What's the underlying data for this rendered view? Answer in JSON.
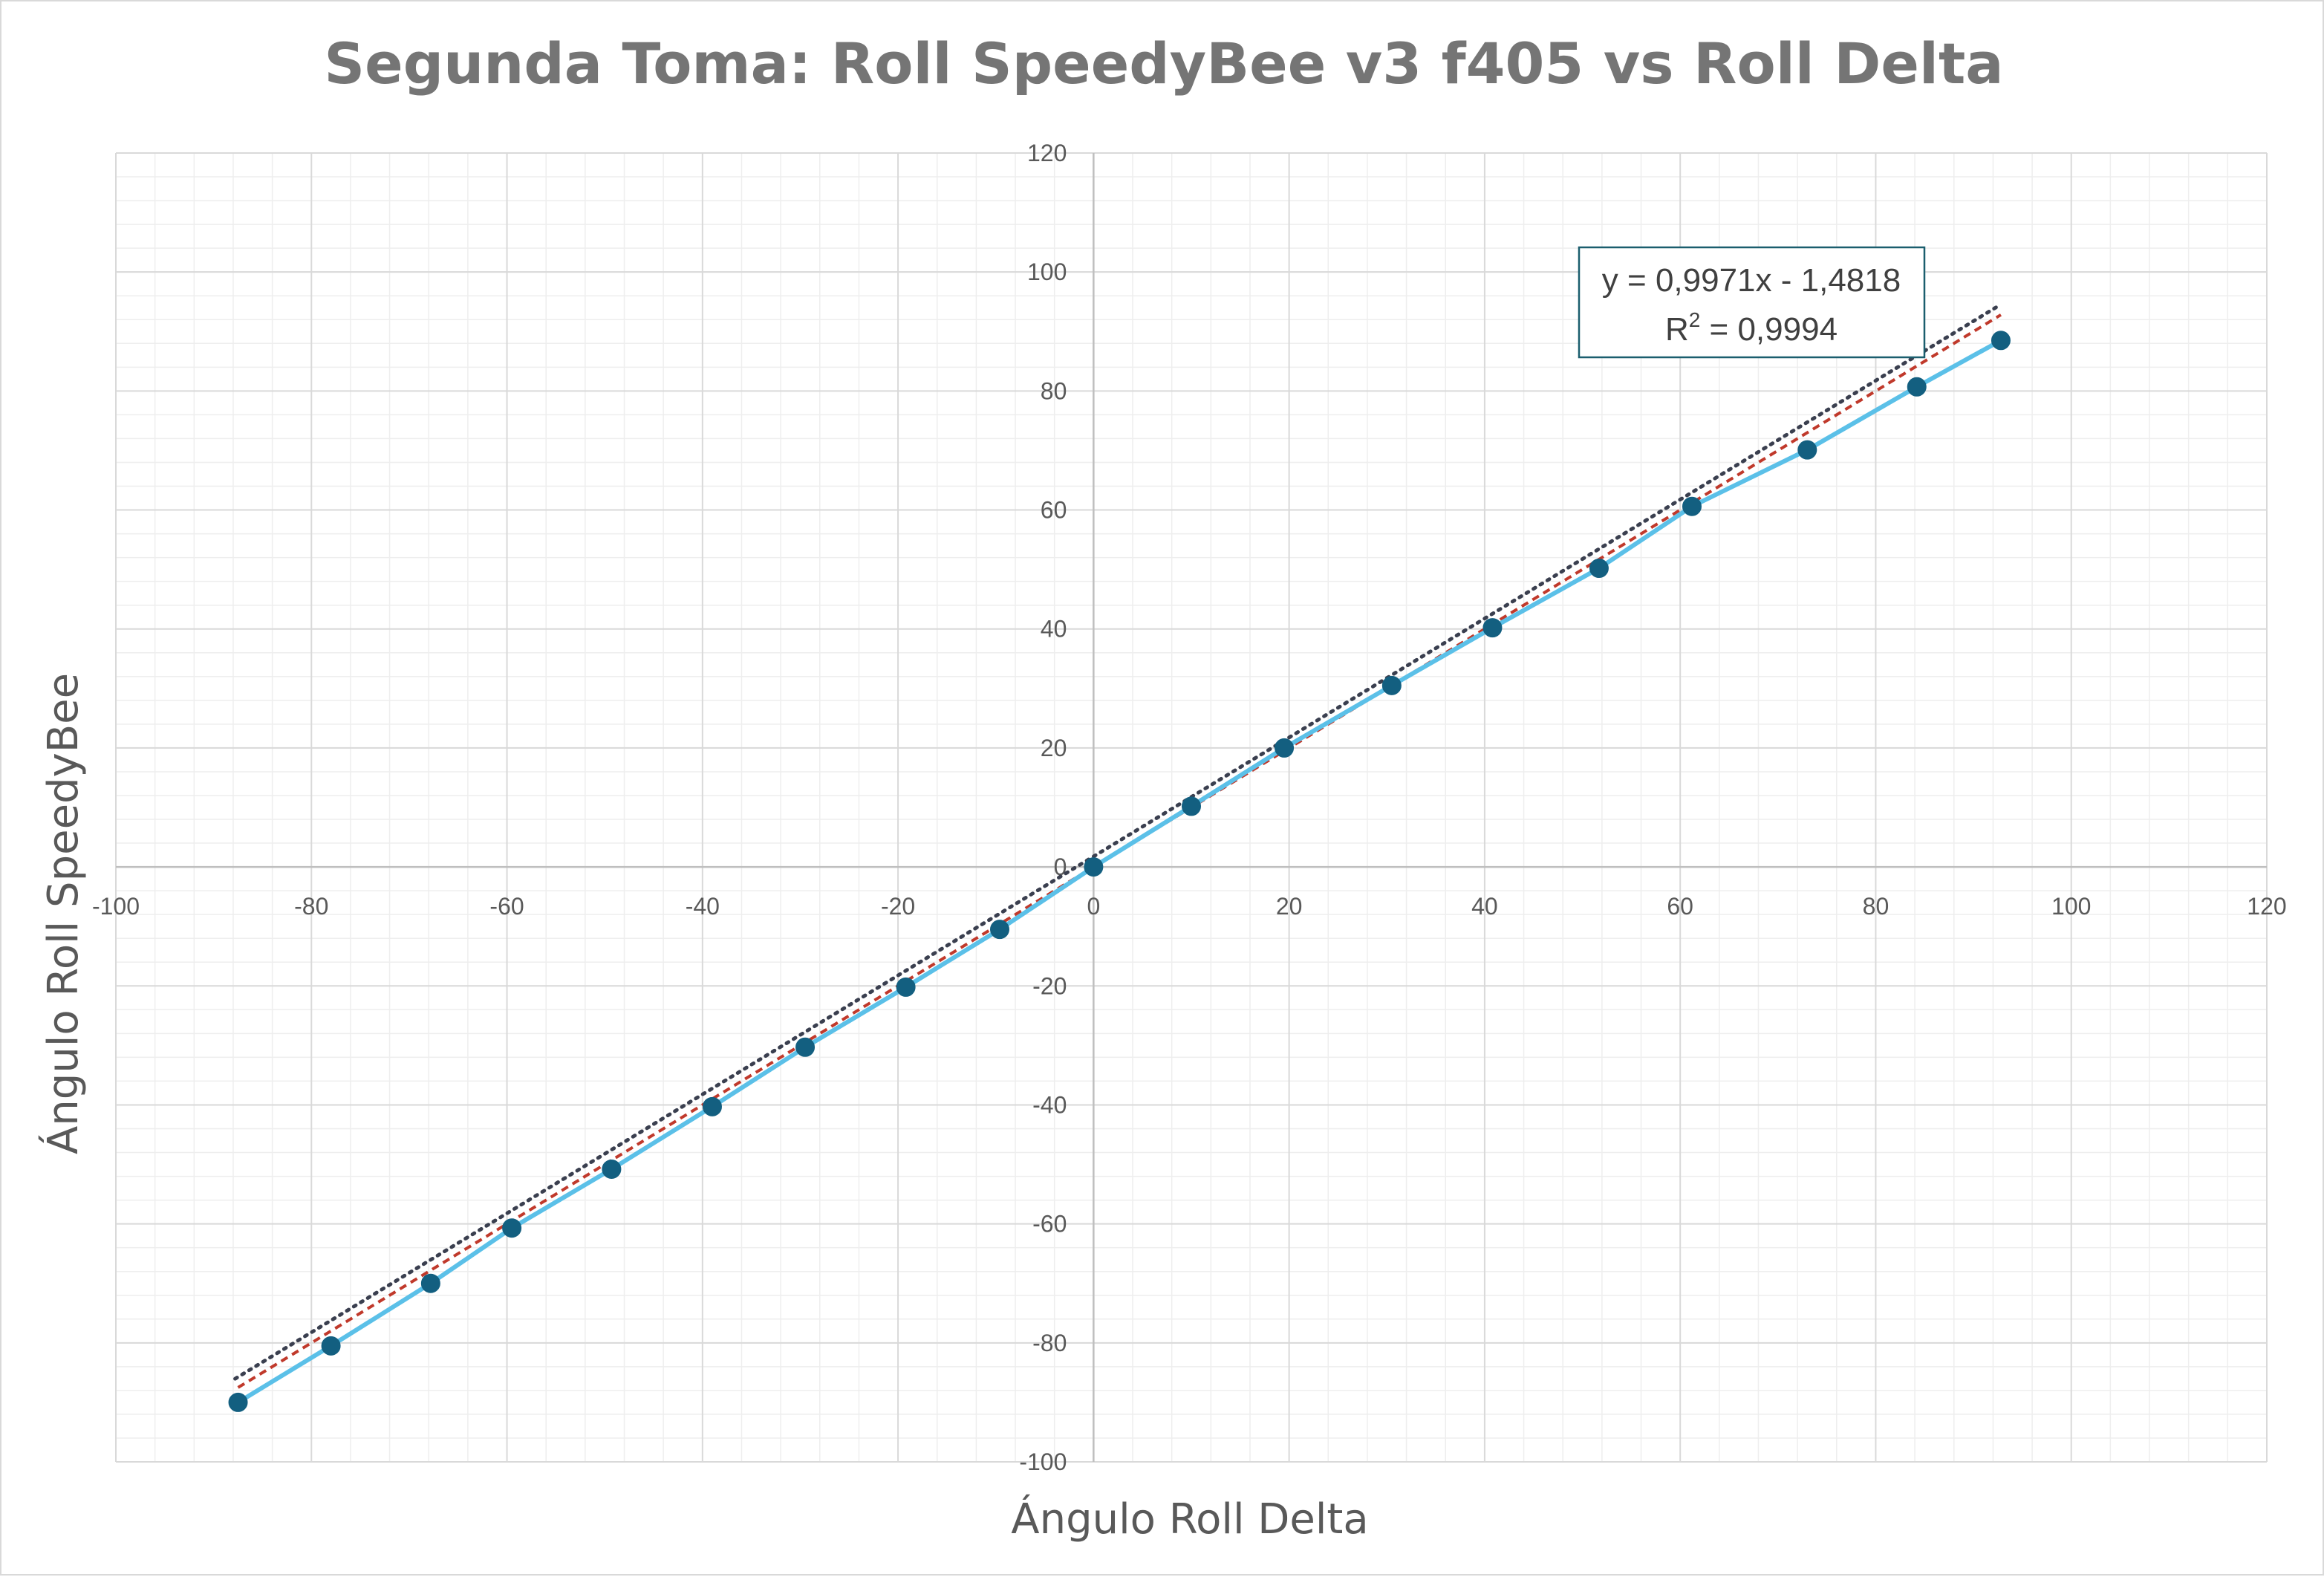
{
  "chart_data": {
    "type": "scatter",
    "title": "Segunda Toma: Roll SpeedyBee v3 f405 vs Roll Delta",
    "xlabel": "Ángulo Roll Delta",
    "ylabel": "Ángulo Roll SpeedyBee",
    "xlim": [
      -100,
      120
    ],
    "ylim": [
      -100,
      120
    ],
    "x_ticks": [
      -100,
      -80,
      -60,
      -40,
      -20,
      0,
      20,
      40,
      60,
      80,
      100,
      120
    ],
    "y_ticks": [
      -100,
      -80,
      -60,
      -40,
      -20,
      0,
      20,
      40,
      60,
      80,
      100,
      120
    ],
    "grid": true,
    "minor_grid": true,
    "legend": "none",
    "series": [
      {
        "x": [
          -87.5,
          -78,
          -67.8,
          -59.5,
          -49.3,
          -39,
          -29.5,
          -19.2,
          -9.6,
          0,
          10,
          19.5,
          30.5,
          40.8,
          51.7,
          61.2,
          73,
          84.2,
          92.8
        ],
        "y": [
          -90,
          -80.5,
          -70,
          -60.7,
          -50.8,
          -40.3,
          -30.3,
          -20.2,
          -10.5,
          0,
          10.2,
          20,
          30.5,
          40.2,
          50.2,
          60.6,
          70.1,
          80.7,
          88.5
        ],
        "marker_color": "#135f80",
        "line_color": "#5bc0e8"
      }
    ],
    "trendline": {
      "type": "linear",
      "slope": 0.9971,
      "intercept": -1.4818,
      "equation_text": "y = 0,9971x - 1,4818",
      "r2_prefix": "R",
      "r2_exponent": "2",
      "r2_value_text": " = 0,9994",
      "style": "dotted",
      "color": "#3a3f4f"
    },
    "reference_line": {
      "type": "identity",
      "style": "dashed",
      "color": "#c0392b"
    },
    "colors": {
      "grid_major": "#d9d9d9",
      "grid_minor": "#eeeeee",
      "axis": "#bfbfbf",
      "text": "#595959",
      "title": "#757575",
      "eq_border": "#1b5e6e"
    }
  }
}
